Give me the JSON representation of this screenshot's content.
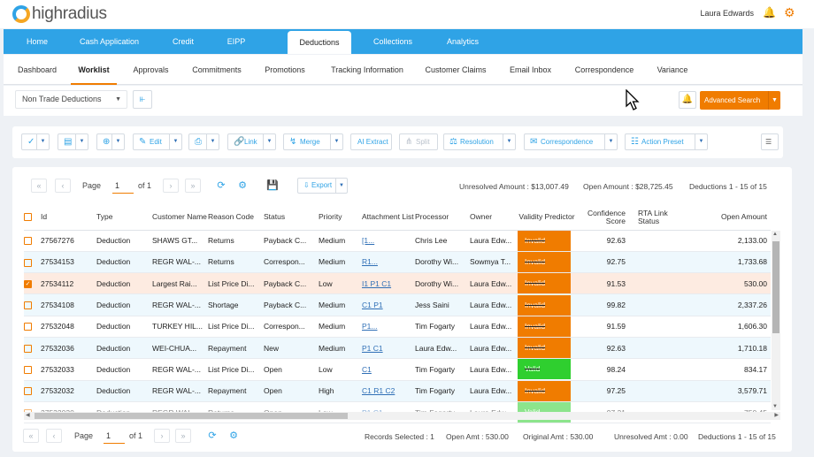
{
  "brand": {
    "logo_text": "highradius"
  },
  "header": {
    "user_name": "Laura Edwards"
  },
  "main_nav": [
    {
      "label": "Home"
    },
    {
      "label": "Cash Application"
    },
    {
      "label": "Credit"
    },
    {
      "label": "EIPP"
    },
    {
      "label": "Deductions",
      "active": true
    },
    {
      "label": "Collections"
    },
    {
      "label": "Analytics"
    }
  ],
  "sub_nav": [
    {
      "label": "Dashboard"
    },
    {
      "label": "Worklist",
      "active": true
    },
    {
      "label": "Approvals"
    },
    {
      "label": "Commitments"
    },
    {
      "label": "Promotions"
    },
    {
      "label": "Tracking Information"
    },
    {
      "label": "Customer Claims"
    },
    {
      "label": "Email Inbox"
    },
    {
      "label": "Correspondence"
    },
    {
      "label": "Variance"
    }
  ],
  "filter": {
    "selected_view": "Non Trade Deductions",
    "advanced_search_label": "Advanced Search"
  },
  "toolbar": {
    "edit": "Edit",
    "link": "Link",
    "merge": "Merge",
    "ai_extract": "AI Extract",
    "split": "Split",
    "resolution": "Resolution",
    "correspondence": "Correspondence",
    "action_preset": "Action Preset"
  },
  "pager_top": {
    "page_label": "Page",
    "page_value": "1",
    "of_label": "of 1",
    "export_label": "Export",
    "unresolved_amount": "Unresolved Amount : $13,007.49",
    "open_amount": "Open Amount : $28,725.45",
    "range": "Deductions 1 - 15 of 15"
  },
  "columns": [
    "Id",
    "Type",
    "Customer Name",
    "Reason Code",
    "Status",
    "Priority",
    "Attachment List",
    "Processor",
    "Owner",
    "Validity Predictor",
    "Confidence Score",
    "RTA Link Status",
    "Open Amount"
  ],
  "rows": [
    {
      "id": "27567276",
      "type": "Deduction",
      "customer": "SHAWS GT...",
      "reason": "Returns",
      "status": "Payback C...",
      "priority": "Medium",
      "attachments": "[1...",
      "processor": "Chris Lee",
      "owner": "Laura Edw...",
      "validity": "Invalid",
      "confidence": "92.63",
      "rta": "",
      "amount": "2,133.00",
      "checked": false
    },
    {
      "id": "27534153",
      "type": "Deduction",
      "customer": "REGR WAL-...",
      "reason": "Returns",
      "status": "Correspon...",
      "priority": "Medium",
      "attachments": "R1...",
      "processor": "Dorothy Wi...",
      "owner": "Sowmya T...",
      "validity": "Invalid",
      "confidence": "92.75",
      "rta": "",
      "amount": "1,733.68",
      "checked": false
    },
    {
      "id": "27534112",
      "type": "Deduction",
      "customer": "Largest Rai...",
      "reason": "List Price Di...",
      "status": "Payback C...",
      "priority": "Low",
      "attachments": "I1 P1 C1",
      "processor": "Dorothy Wi...",
      "owner": "Laura Edw...",
      "validity": "Invalid",
      "confidence": "91.53",
      "rta": "",
      "amount": "530.00",
      "checked": true
    },
    {
      "id": "27534108",
      "type": "Deduction",
      "customer": "REGR WAL-...",
      "reason": "Shortage",
      "status": "Payback C...",
      "priority": "Medium",
      "attachments": "C1 P1",
      "processor": "Jess Saini",
      "owner": "Laura Edw...",
      "validity": "Invalid",
      "confidence": "99.82",
      "rta": "",
      "amount": "2,337.26",
      "checked": false
    },
    {
      "id": "27532048",
      "type": "Deduction",
      "customer": "TURKEY HIL...",
      "reason": "List Price Di...",
      "status": "Correspon...",
      "priority": "Medium",
      "attachments": "P1...",
      "processor": "Tim Fogarty",
      "owner": "Laura Edw...",
      "validity": "Invalid",
      "confidence": "91.59",
      "rta": "",
      "amount": "1,606.30",
      "checked": false
    },
    {
      "id": "27532036",
      "type": "Deduction",
      "customer": "WEI-CHUA...",
      "reason": "Repayment",
      "status": "New",
      "priority": "Medium",
      "attachments": "P1 C1",
      "processor": "Laura Edw...",
      "owner": "Laura Edw...",
      "validity": "Invalid",
      "confidence": "92.63",
      "rta": "",
      "amount": "1,710.18",
      "checked": false
    },
    {
      "id": "27532033",
      "type": "Deduction",
      "customer": "REGR WAL-...",
      "reason": "List Price Di...",
      "status": "Open",
      "priority": "Low",
      "attachments": "C1",
      "processor": "Tim Fogarty",
      "owner": "Laura Edw...",
      "validity": "Valid",
      "confidence": "98.24",
      "rta": "",
      "amount": "834.17",
      "checked": false
    },
    {
      "id": "27532032",
      "type": "Deduction",
      "customer": "REGR WAL-...",
      "reason": "Repayment",
      "status": "Open",
      "priority": "High",
      "attachments": "C1 R1 C2",
      "processor": "Tim Fogarty",
      "owner": "Laura Edw...",
      "validity": "Invalid",
      "confidence": "97.25",
      "rta": "",
      "amount": "3,579.71",
      "checked": false
    },
    {
      "id": "27532030",
      "type": "Deduction",
      "customer": "REGR WAL-...",
      "reason": "Returns",
      "status": "Open",
      "priority": "Low",
      "attachments": "P1 C1",
      "processor": "Tim Fogarty",
      "owner": "Laura Edw...",
      "validity": "Valid",
      "confidence": "97.31",
      "rta": "",
      "amount": "750.45",
      "checked": false
    }
  ],
  "pager_bottom": {
    "page_label": "Page",
    "page_value": "1",
    "of_label": "of 1",
    "records_selected": "Records Selected : 1",
    "open_amt": "Open Amt : 530.00",
    "original_amt": "Original Amt : 530.00",
    "unresolved_amt": "Unresolved Amt : 0.00",
    "range": "Deductions 1 - 15 of 15"
  },
  "colors": {
    "primary": "#2fa3e6",
    "accent": "#f07c00",
    "invalid": "#f07c00",
    "valid": "#2fcf2f",
    "selected_row": "#fdebe1"
  },
  "icons": [
    "bell-icon",
    "gear-icon",
    "filter-icon",
    "checkmark-icon",
    "edit-icon",
    "print-icon",
    "link-icon",
    "merge-icon",
    "split-icon",
    "resolution-icon",
    "mail-icon",
    "preset-icon",
    "menu-icon",
    "refresh-icon",
    "save-icon",
    "export-icon"
  ]
}
